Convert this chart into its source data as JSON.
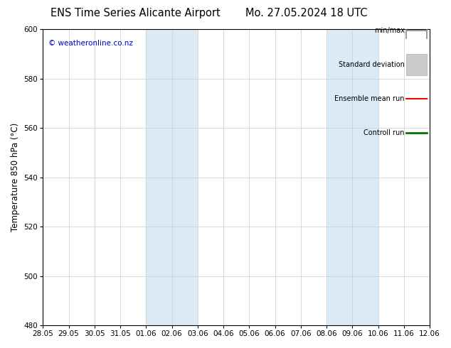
{
  "title_left": "ENS Time Series Alicante Airport",
  "title_right": "Mo. 27.05.2024 18 UTC",
  "ylabel": "Temperature 850 hPa (°C)",
  "ylim": [
    480,
    600
  ],
  "yticks": [
    480,
    500,
    520,
    540,
    560,
    580,
    600
  ],
  "x_tick_labels": [
    "28.05",
    "29.05",
    "30.05",
    "31.05",
    "01.06",
    "02.06",
    "03.06",
    "04.06",
    "05.06",
    "06.06",
    "07.06",
    "08.06",
    "09.06",
    "10.06",
    "11.06",
    "12.06"
  ],
  "x_tick_positions": [
    0,
    1,
    2,
    3,
    4,
    5,
    6,
    7,
    8,
    9,
    10,
    11,
    12,
    13,
    14,
    15
  ],
  "shaded_bands": [
    {
      "x_start": 4,
      "x_end": 6,
      "color": "#daeaf7"
    },
    {
      "x_start": 11,
      "x_end": 13,
      "color": "#daeaf7"
    }
  ],
  "watermark": "© weatheronline.co.nz",
  "watermark_color": "#0000cc",
  "legend_items": [
    {
      "label": "min/max",
      "color": "#999999",
      "lw": 1.2,
      "style": "minmax"
    },
    {
      "label": "Standard deviation",
      "color": "#cccccc",
      "lw": 6,
      "style": "band"
    },
    {
      "label": "Ensemble mean run",
      "color": "#ff0000",
      "lw": 1.5,
      "style": "line"
    },
    {
      "label": "Controll run",
      "color": "#007700",
      "lw": 2.0,
      "style": "line"
    }
  ],
  "bg_color": "#ffffff",
  "plot_bg_color": "#ffffff",
  "grid_color": "#cccccc",
  "title_fontsize": 10.5,
  "tick_fontsize": 7.5,
  "ylabel_fontsize": 8.5,
  "legend_fontsize": 7.0
}
